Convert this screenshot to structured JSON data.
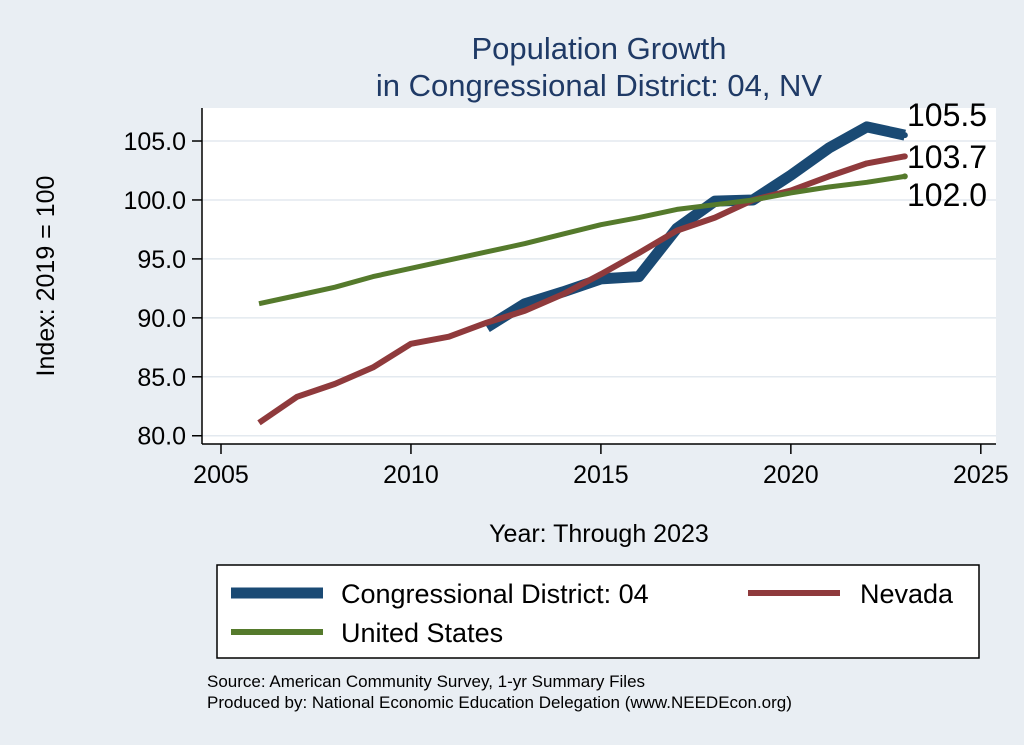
{
  "chart_data": {
    "type": "line",
    "title": "Population Growth",
    "subtitle": "in Congressional District: 04, NV",
    "xlabel": "Year: Through 2023",
    "ylabel": "Index: 2019 = 100",
    "xlim": [
      2004.5,
      2025.4
    ],
    "ylim": [
      79.3,
      107.8
    ],
    "x_ticks": [
      2005,
      2010,
      2015,
      2020,
      2025
    ],
    "y_ticks": [
      80,
      85,
      90,
      95,
      100,
      105
    ],
    "y_tick_labels": [
      "80.0",
      "85.0",
      "90.0",
      "95.0",
      "100.0",
      "105.0"
    ],
    "grid": true,
    "legend_position": "bottom",
    "series": [
      {
        "name": "Congressional District: 04",
        "color": "#1a4a74",
        "x": [
          2012,
          2013,
          2014,
          2015,
          2016,
          2017,
          2018,
          2019,
          2020,
          2021,
          2022,
          2023
        ],
        "values": [
          89.2,
          91.2,
          92.2,
          93.3,
          93.5,
          97.6,
          99.9,
          100.0,
          102.1,
          104.4,
          106.2,
          105.5
        ]
      },
      {
        "name": "Nevada",
        "color": "#8f3a3c",
        "x": [
          2006,
          2007,
          2008,
          2009,
          2010,
          2011,
          2012,
          2013,
          2014,
          2015,
          2016,
          2017,
          2018,
          2019,
          2020,
          2021,
          2022,
          2023
        ],
        "values": [
          81.1,
          83.3,
          84.4,
          85.8,
          87.8,
          88.4,
          89.6,
          90.6,
          92.0,
          93.7,
          95.5,
          97.4,
          98.5,
          100.0,
          100.8,
          102.0,
          103.1,
          103.7
        ]
      },
      {
        "name": "United States",
        "color": "#557a2c",
        "x": [
          2006,
          2007,
          2008,
          2009,
          2010,
          2011,
          2012,
          2013,
          2014,
          2015,
          2016,
          2017,
          2018,
          2019,
          2020,
          2021,
          2022,
          2023
        ],
        "values": [
          91.2,
          91.9,
          92.6,
          93.5,
          94.2,
          94.9,
          95.6,
          96.3,
          97.1,
          97.9,
          98.5,
          99.2,
          99.6,
          100.0,
          100.6,
          101.1,
          101.5,
          102.0
        ]
      }
    ],
    "end_labels": [
      "105.5",
      "103.7",
      "102.0"
    ],
    "legend": [
      "Congressional District: 04",
      "Nevada",
      "United States"
    ]
  },
  "source": {
    "line1": "Source: American Community Survey, 1-yr Summary Files",
    "line2": "Produced by: National Economic Education Delegation (www.NEEDEcon.org)"
  }
}
